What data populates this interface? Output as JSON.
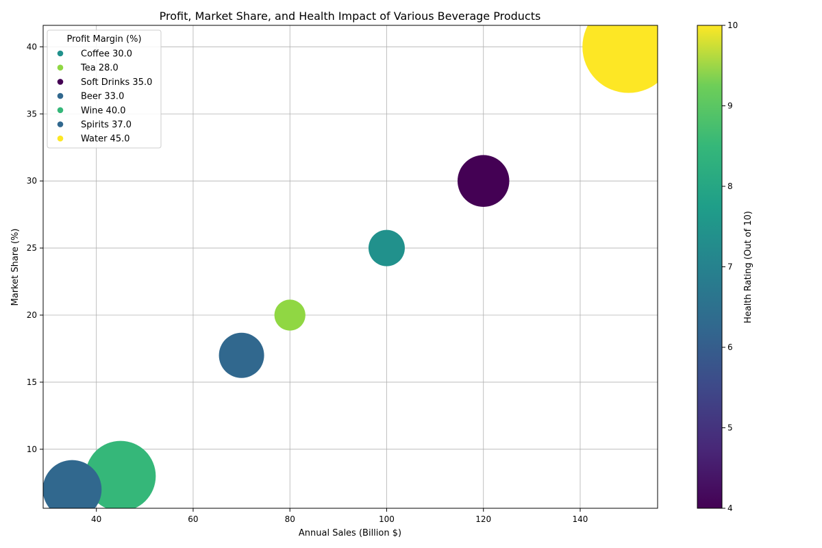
{
  "chart_data": {
    "type": "scatter",
    "title": "Profit, Market Share, and Health Impact of Various Beverage Products",
    "xlabel": "Annual Sales (Billion $)",
    "ylabel": "Market Share (%)",
    "xlim": [
      29,
      156
    ],
    "ylim": [
      5.6,
      41.6
    ],
    "xticks": [
      40,
      60,
      80,
      100,
      120,
      140
    ],
    "yticks": [
      10,
      15,
      20,
      25,
      30,
      35,
      40
    ],
    "grid": true,
    "legend": {
      "title": "Profit Margin (%)",
      "placement": "upper-left"
    },
    "size_encodes": "Profit Margin (%)",
    "color_encodes": "Health Rating (Out of 10)",
    "colorbar": {
      "label": "Health Rating (Out of 10)",
      "range": [
        4,
        10
      ],
      "ticks": [
        4,
        5,
        6,
        7,
        8,
        9,
        10
      ],
      "colormap": "viridis"
    },
    "points": [
      {
        "legend_label": "Coffee 30.0",
        "annual_sales": 100,
        "market_share": 25,
        "profit_margin": 30.0,
        "health_rating": 7,
        "color": "#21918c"
      },
      {
        "legend_label": "Tea 28.0",
        "annual_sales": 80,
        "market_share": 20,
        "profit_margin": 28.0,
        "health_rating": 9,
        "color": "#90d743"
      },
      {
        "legend_label": "Soft Drinks 35.0",
        "annual_sales": 120,
        "market_share": 30,
        "profit_margin": 35.0,
        "health_rating": 4,
        "color": "#440154"
      },
      {
        "legend_label": "Beer 33.0",
        "annual_sales": 70,
        "market_share": 17,
        "profit_margin": 33.0,
        "health_rating": 6,
        "color": "#31688e"
      },
      {
        "legend_label": "Wine 40.0",
        "annual_sales": 45,
        "market_share": 8,
        "profit_margin": 40.0,
        "health_rating": 8,
        "color": "#35b779"
      },
      {
        "legend_label": "Spirits 37.0",
        "annual_sales": 35,
        "market_share": 7,
        "profit_margin": 37.0,
        "health_rating": 6,
        "color": "#31688e"
      },
      {
        "legend_label": "Water 45.0",
        "annual_sales": 150,
        "market_share": 40,
        "profit_margin": 45.0,
        "health_rating": 10,
        "color": "#fde725"
      }
    ]
  }
}
